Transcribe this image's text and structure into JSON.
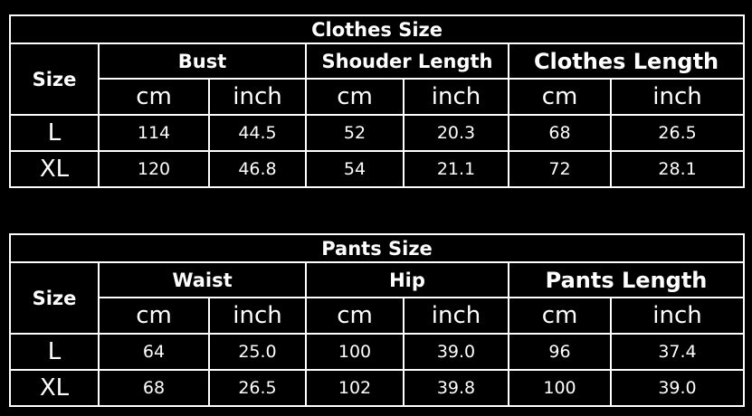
{
  "tables": [
    {
      "title": "Clothes Size",
      "size_label": "Size",
      "groups": [
        "Bust",
        "Shouder Length",
        "Clothes Length"
      ],
      "units": [
        "cm",
        "inch",
        "cm",
        "inch",
        "cm",
        "inch"
      ],
      "rows": [
        {
          "size": "L",
          "values": [
            "114",
            "44.5",
            "52",
            "20.3",
            "68",
            "26.5"
          ]
        },
        {
          "size": "XL",
          "values": [
            "120",
            "46.8",
            "54",
            "21.1",
            "72",
            "28.1"
          ]
        }
      ]
    },
    {
      "title": "Pants Size",
      "size_label": "Size",
      "groups": [
        "Waist",
        "Hip",
        "Pants Length"
      ],
      "units": [
        "cm",
        "inch",
        "cm",
        "inch",
        "cm",
        "inch"
      ],
      "rows": [
        {
          "size": "L",
          "values": [
            "64",
            "25.0",
            "100",
            "39.0",
            "96",
            "37.4"
          ]
        },
        {
          "size": "XL",
          "values": [
            "68",
            "26.5",
            "102",
            "39.8",
            "100",
            "39.0"
          ]
        }
      ]
    }
  ]
}
